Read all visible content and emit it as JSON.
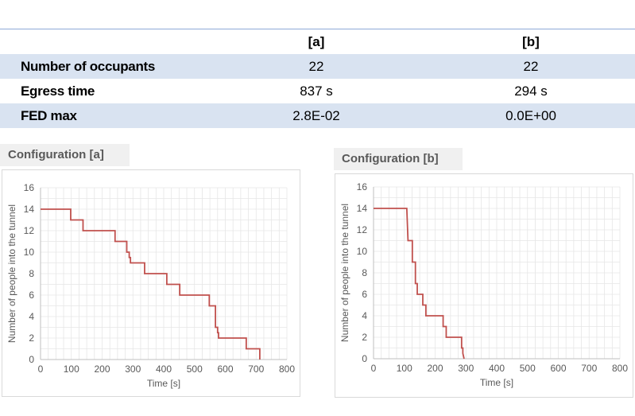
{
  "table": {
    "headers": [
      "[a]",
      "[b]"
    ],
    "rows": [
      {
        "label": "Number of occupants",
        "a": "22",
        "b": "22"
      },
      {
        "label": "Egress time",
        "a": "837 s",
        "b": "294 s"
      },
      {
        "label": "FED max",
        "a": "2.8E-02",
        "b": "0.0E+00"
      }
    ]
  },
  "colors": {
    "line": "#c0504d",
    "row_shade": "#d9e3f1",
    "grid": "#e6e6e6"
  },
  "chart_data": [
    {
      "type": "line",
      "title": "Configuration [a]",
      "xlabel": "Time [s]",
      "ylabel": "Number of people into the tunnel",
      "xlim": [
        0,
        800
      ],
      "ylim": [
        0,
        16
      ],
      "xticks": [
        0,
        100,
        200,
        300,
        400,
        500,
        600,
        700,
        800
      ],
      "yticks": [
        0,
        2,
        4,
        6,
        8,
        10,
        12,
        14,
        16
      ],
      "grid": true,
      "series": [
        {
          "x": [
            0,
            98,
            98,
            138,
            138,
            242,
            242,
            280,
            280,
            288,
            288,
            292,
            292,
            338,
            338,
            410,
            410,
            452,
            452,
            548,
            548,
            568,
            568,
            575,
            575,
            578,
            578,
            668,
            668,
            712,
            712
          ],
          "y": [
            14,
            14,
            13,
            13,
            12,
            12,
            11,
            11,
            10,
            10,
            9.5,
            9.5,
            9,
            9,
            8,
            8,
            7,
            7,
            6,
            6,
            5,
            5,
            3,
            3,
            2.5,
            2.5,
            2,
            2,
            1,
            1,
            0
          ]
        }
      ]
    },
    {
      "type": "line",
      "title": "Configuration [b]",
      "xlabel": "Time [s]",
      "ylabel": "Number of people into the tunnel",
      "xlim": [
        0,
        800
      ],
      "ylim": [
        0,
        16
      ],
      "xticks": [
        0,
        100,
        200,
        300,
        400,
        500,
        600,
        700,
        800
      ],
      "yticks": [
        0,
        2,
        4,
        6,
        8,
        10,
        12,
        14,
        16
      ],
      "grid": true,
      "series": [
        {
          "x": [
            0,
            108,
            112,
            112,
            126,
            126,
            136,
            136,
            142,
            142,
            146,
            146,
            160,
            160,
            170,
            170,
            226,
            226,
            236,
            236,
            286,
            286,
            290,
            290,
            294
          ],
          "y": [
            14,
            14,
            11,
            11,
            11,
            9,
            9,
            7,
            7,
            6,
            6,
            6,
            6,
            5,
            5,
            4,
            4,
            3,
            3,
            2,
            2,
            1,
            1,
            0.5,
            0
          ]
        }
      ]
    }
  ]
}
